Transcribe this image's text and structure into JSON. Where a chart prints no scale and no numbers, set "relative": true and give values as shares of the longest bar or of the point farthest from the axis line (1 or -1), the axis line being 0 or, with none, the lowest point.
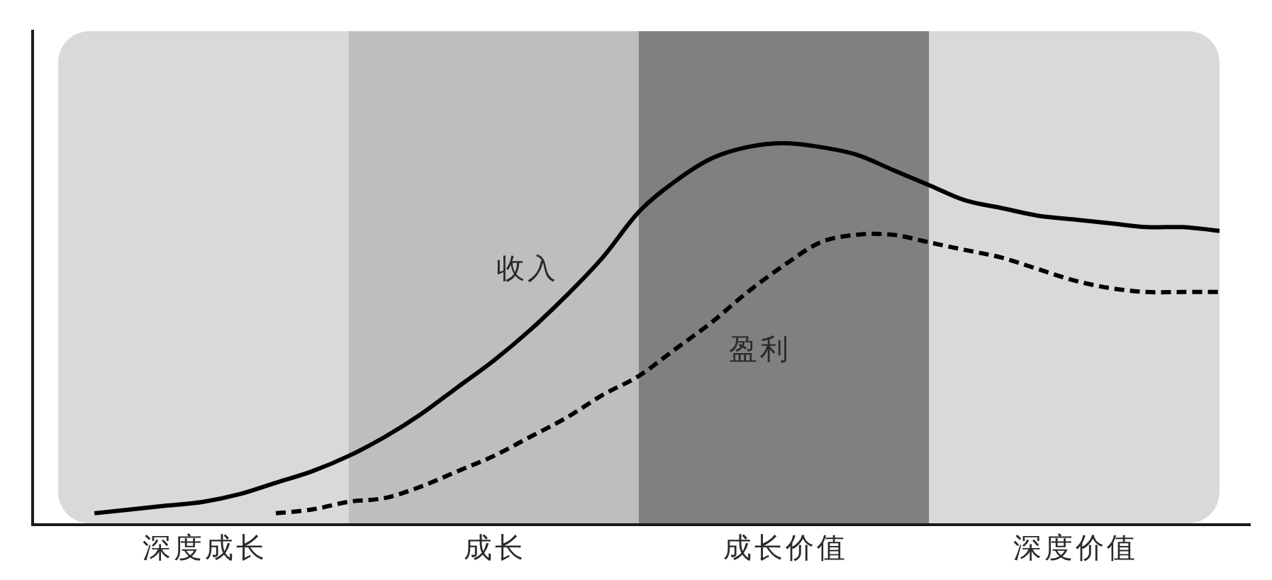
{
  "chart_data": {
    "type": "line",
    "relative": true,
    "categories": [
      null,
      null,
      null,
      null,
      "深度成长",
      null,
      null,
      null,
      null,
      null,
      null,
      null,
      "成长",
      null,
      null,
      null,
      null,
      null,
      null,
      null,
      "成长价值",
      null,
      null,
      null,
      null,
      null,
      null,
      null,
      "深度价值",
      null,
      null,
      null,
      null
    ],
    "series": [
      {
        "name": "收入",
        "color": "#000000",
        "line_style": "solid",
        "values": [
          null,
          0.03,
          0.04,
          0.05,
          0.06,
          0.08,
          0.11,
          0.14,
          0.18,
          0.23,
          0.29,
          0.36,
          0.43,
          0.51,
          0.6,
          0.7,
          0.82,
          0.9,
          0.96,
          0.99,
          1.0,
          0.99,
          0.97,
          0.93,
          0.89,
          0.85,
          0.83,
          0.81,
          0.8,
          0.79,
          0.78,
          0.78,
          0.77
        ]
      },
      {
        "name": "盈利",
        "color": "#000000",
        "line_style": "dashed",
        "values": [
          null,
          null,
          null,
          null,
          null,
          null,
          0.03,
          0.04,
          0.06,
          0.07,
          0.1,
          0.14,
          0.18,
          0.23,
          0.28,
          0.34,
          0.39,
          0.46,
          0.53,
          0.61,
          0.68,
          0.74,
          0.76,
          0.76,
          0.74,
          0.72,
          0.7,
          0.67,
          0.64,
          0.62,
          0.61,
          0.61,
          0.61
        ]
      }
    ]
  }
}
